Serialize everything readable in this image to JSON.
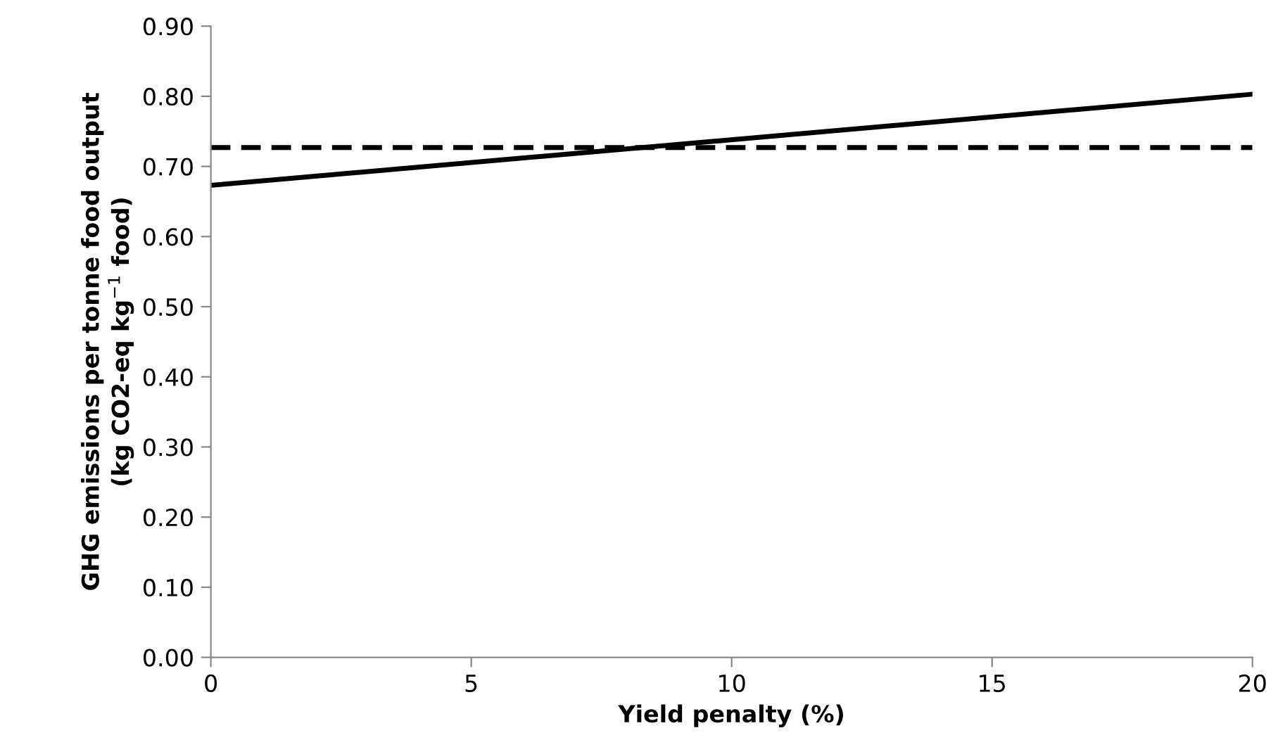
{
  "chart_data": {
    "type": "line",
    "xlabel": "Yield penalty (%)",
    "ylabel": "GHG emissions per tonne food output\n(kg CO2-eq kg$^{−1}$ food)",
    "xlim": [
      0,
      20
    ],
    "xticks": [
      0,
      5,
      10,
      15,
      20
    ],
    "ylim": [
      0,
      0.9
    ],
    "yticks": [
      {
        "value": 0,
        "label": "0.00"
      },
      {
        "value": 0.1,
        "label": "0.10"
      },
      {
        "value": 0.2,
        "label": "0.20"
      },
      {
        "value": 0.3,
        "label": "0.30"
      },
      {
        "value": 0.4,
        "label": "0.40"
      },
      {
        "value": 0.5,
        "label": "0.50"
      },
      {
        "value": 0.6,
        "label": "0.60"
      },
      {
        "value": 0.7,
        "label": "0.70"
      },
      {
        "value": 0.8,
        "label": "0.80"
      },
      {
        "value": 0.9,
        "label": "0.90"
      }
    ],
    "grid": false,
    "x": [
      0,
      20
    ],
    "series": [
      {
        "color": "#000000",
        "values": [
          0.673,
          0.803
        ],
        "line_style": "solid"
      },
      {
        "color": "#000000",
        "values": [
          0.727,
          0.727
        ],
        "line_style": "dashed"
      }
    ]
  }
}
